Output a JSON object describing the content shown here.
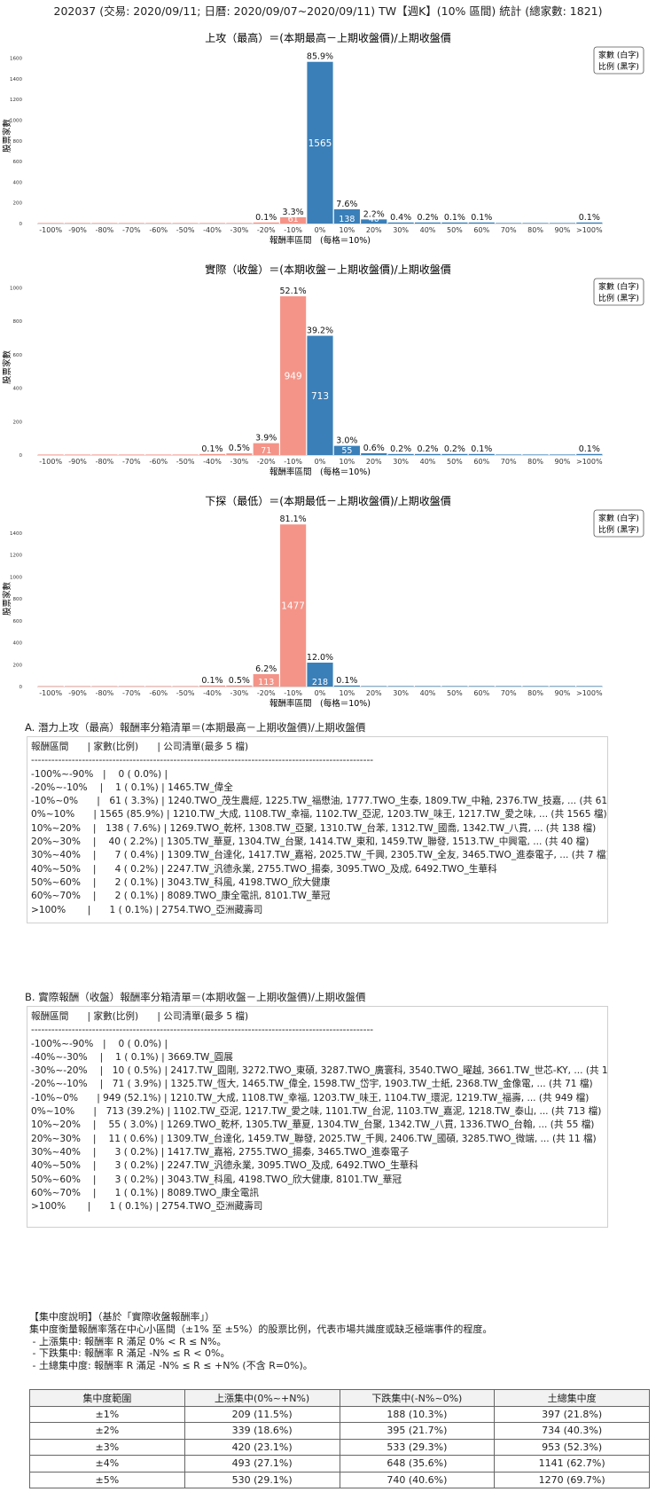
{
  "page_title": "202037 (交易: 2020/09/11; 日曆: 2020/09/07~2020/09/11) TW【週K】(10% 區間) 統計 (總家數: 1821)",
  "legend_box": [
    "家數 (白字)",
    "比例 (黑字)"
  ],
  "colors": {
    "positive": "#3a7fb8",
    "negative": "#f49488"
  },
  "chart_data": [
    {
      "type": "bar",
      "title": "上攻（最高）＝(本期最高－上期收盤價)/上期收盤價",
      "xlabel": "報酬率區間　(每格＝10%)",
      "ylabel": "股票家數",
      "ylim": [
        0,
        1700
      ],
      "yticks": [
        0,
        200,
        400,
        600,
        800,
        1000,
        1200,
        1400,
        1600
      ],
      "categories": [
        "-100%",
        "-90%",
        "-80%",
        "-70%",
        "-60%",
        "-50%",
        "-40%",
        "-30%",
        "-20%",
        "-10%",
        "0%",
        "10%",
        "20%",
        "30%",
        "40%",
        "50%",
        "60%",
        "70%",
        "80%",
        "90%",
        ">100%"
      ],
      "values": [
        0,
        0,
        0,
        0,
        0,
        0,
        0,
        0,
        1,
        61,
        1565,
        138,
        40,
        7,
        4,
        2,
        2,
        0,
        0,
        0,
        1
      ],
      "pct_labels": [
        "",
        "",
        "",
        "",
        "",
        "",
        "",
        "",
        "0.1%",
        "3.3%",
        "85.9%",
        "7.6%",
        "2.2%",
        "0.4%",
        "0.2%",
        "0.1%",
        "0.1%",
        "",
        "",
        "",
        "0.1%"
      ],
      "count_labels": [
        "",
        "",
        "",
        "",
        "",
        "",
        "",
        "",
        "",
        "61",
        "1565",
        "138",
        "40",
        "",
        "",
        "",
        "",
        "",
        "",
        "",
        ""
      ]
    },
    {
      "type": "bar",
      "title": "實際（收盤）＝(本期收盤－上期收盤價)/上期收盤價",
      "xlabel": "報酬率區間　(每格＝10%)",
      "ylabel": "股票家數",
      "ylim": [
        0,
        1050
      ],
      "yticks": [
        0,
        200,
        400,
        600,
        800,
        1000
      ],
      "categories": [
        "-100%",
        "-90%",
        "-80%",
        "-70%",
        "-60%",
        "-50%",
        "-40%",
        "-30%",
        "-20%",
        "-10%",
        "0%",
        "10%",
        "20%",
        "30%",
        "40%",
        "50%",
        "60%",
        "70%",
        "80%",
        "90%",
        ">100%"
      ],
      "values": [
        0,
        0,
        0,
        0,
        0,
        0,
        1,
        10,
        71,
        949,
        713,
        55,
        11,
        3,
        3,
        3,
        1,
        0,
        0,
        0,
        1
      ],
      "pct_labels": [
        "",
        "",
        "",
        "",
        "",
        "",
        "0.1%",
        "0.5%",
        "3.9%",
        "52.1%",
        "39.2%",
        "3.0%",
        "0.6%",
        "0.2%",
        "0.2%",
        "0.2%",
        "0.1%",
        "",
        "",
        "",
        "0.1%"
      ],
      "count_labels": [
        "",
        "",
        "",
        "",
        "",
        "",
        "",
        "",
        "71",
        "949",
        "713",
        "55",
        "",
        "",
        "",
        "",
        "",
        "",
        "",
        "",
        ""
      ]
    },
    {
      "type": "bar",
      "title": "下探（最低）＝(本期最低－上期收盤價)/上期收盤價",
      "xlabel": "報酬率區間　(每格＝10%)",
      "ylabel": "股票家數",
      "ylim": [
        0,
        1600
      ],
      "yticks": [
        0,
        200,
        400,
        600,
        800,
        1000,
        1200,
        1400
      ],
      "categories": [
        "-100%",
        "-90%",
        "-80%",
        "-70%",
        "-60%",
        "-50%",
        "-40%",
        "-30%",
        "-20%",
        "-10%",
        "0%",
        "10%",
        "20%",
        "30%",
        "40%",
        "50%",
        "60%",
        "70%",
        "80%",
        "90%",
        ">100%"
      ],
      "values": [
        0,
        0,
        0,
        0,
        0,
        0,
        1,
        10,
        113,
        1477,
        218,
        2,
        0,
        0,
        0,
        0,
        0,
        0,
        0,
        0,
        0
      ],
      "pct_labels": [
        "",
        "",
        "",
        "",
        "",
        "",
        "0.1%",
        "0.5%",
        "6.2%",
        "81.1%",
        "12.0%",
        "0.1%",
        "",
        "",
        "",
        "",
        "",
        "",
        "",
        "",
        ""
      ],
      "count_labels": [
        "",
        "",
        "",
        "",
        "",
        "",
        "",
        "",
        "113",
        "1477",
        "218",
        "",
        "",
        "",
        "",
        "",
        "",
        "",
        "",
        "",
        ""
      ]
    }
  ],
  "list_a": {
    "title": "A. 潛力上攻（最高）報酬率分箱清單＝(本期最高－上期收盤價)/上期收盤價",
    "lines": [
      "報酬區間　　| 家數(比例)　　| 公司清單(最多 5 檔)",
      "-----------------------------------------------------------------------------------------------------",
      "-100%~-90%　|　 0 ( 0.0%) |",
      "-20%~-10%　 |　 1 ( 0.1%) | 1465.TW_偉全",
      "-10%~0%　　|　61 ( 3.3%) | 1240.TWO_茂生農經, 1225.TW_福懋油, 1777.TWO_生泰, 1809.TW_中釉, 2376.TW_技嘉, ... (共 61 檔)",
      "0%~10%　　| 1565 (85.9%) | 1210.TW_大成, 1108.TW_幸福, 1102.TW_亞泥, 1203.TW_味王, 1217.TW_愛之味, ... (共 1565 檔)",
      "10%~20%　 |　138 ( 7.6%) | 1269.TWO_乾杯, 1308.TW_亞聚, 1310.TW_台苯, 1312.TW_國喬, 1342.TW_八貫, ... (共 138 檔)",
      "20%~30%　 |　 40 ( 2.2%) | 1305.TW_華夏, 1304.TW_台聚, 1414.TW_東和, 1459.TW_聯發, 1513.TW_中興電, ... (共 40 檔)",
      "30%~40%　 |　　7 ( 0.4%) | 1309.TW_台達化, 1417.TW_嘉裕, 2025.TW_千興, 2305.TW_全友, 3465.TWO_進泰電子, ... (共 7 檔)",
      "40%~50%　 |　　4 ( 0.2%) | 2247.TW_汎德永業, 2755.TWO_揚秦, 3095.TWO_及成, 6492.TWO_生華科",
      "50%~60%　 |　　2 ( 0.1%) | 3043.TW_科風, 4198.TWO_欣大健康",
      "60%~70%　 |　　2 ( 0.1%) | 8089.TWO_康全電訊, 8101.TW_華冠",
      ">100%　　 |　　1 ( 0.1%) | 2754.TWO_亞洲藏壽司"
    ]
  },
  "list_b": {
    "title": "B. 實際報酬（收盤）報酬率分箱清單＝(本期收盤－上期收盤價)/上期收盤價",
    "lines": [
      "報酬區間　　| 家數(比例)　　| 公司清單(最多 5 檔)",
      "-----------------------------------------------------------------------------------------------------",
      "-100%~-90%　|　 0 ( 0.0%) |",
      "-40%~-30%　 |　 1 ( 0.1%) | 3669.TW_圓展",
      "-30%~-20%　 |　10 ( 0.5%) | 2417.TW_圓剛, 3272.TWO_東碩, 3287.TWO_廣寰科, 3540.TWO_曜越, 3661.TW_世芯-KY, ... (共 10 檔)",
      "-20%~-10%　 |　71 ( 3.9%) | 1325.TW_恆大, 1465.TW_偉全, 1598.TW_岱宇, 1903.TW_士紙, 2368.TW_金像電, ... (共 71 檔)",
      "-10%~0%　　| 949 (52.1%) | 1210.TW_大成, 1108.TW_幸福, 1203.TW_味王, 1104.TW_環泥, 1219.TW_福壽, ... (共 949 檔)",
      "0%~10%　　|　713 (39.2%) | 1102.TW_亞泥, 1217.TW_愛之味, 1101.TW_台泥, 1103.TW_嘉泥, 1218.TW_泰山, ... (共 713 檔)",
      "10%~20%　 |　 55 ( 3.0%) | 1269.TWO_乾杯, 1305.TW_華夏, 1304.TW_台聚, 1342.TW_八貫, 1336.TWO_台翰, ... (共 55 檔)",
      "20%~30%　 |　 11 ( 0.6%) | 1309.TW_台達化, 1459.TW_聯發, 2025.TW_千興, 2406.TW_國碩, 3285.TWO_微端, ... (共 11 檔)",
      "30%~40%　 |　　3 ( 0.2%) | 1417.TW_嘉裕, 2755.TWO_揚秦, 3465.TWO_進泰電子",
      "40%~50%　 |　　3 ( 0.2%) | 2247.TW_汎德永業, 3095.TWO_及成, 6492.TWO_生華科",
      "50%~60%　 |　　3 ( 0.2%) | 3043.TW_科風, 4198.TWO_欣大健康, 8101.TW_華冠",
      "60%~70%　 |　　1 ( 0.1%) | 8089.TWO_康全電訊",
      ">100%　　 |　　1 ( 0.1%) | 2754.TWO_亞洲藏壽司"
    ]
  },
  "notes": [
    "【集中度說明】（基於「實際收盤報酬率」）",
    "集中度衡量報酬率落在中心小區間（±1% 至 ±5%）的股票比例，代表市場共識度或缺乏極端事件的程度。",
    " - 上漲集中: 報酬率 R 滿足 0% < R ≤ N%。",
    " - 下跌集中: 報酬率 R 滿足 -N% ≤ R < 0%。",
    " - 土總集中度: 報酬率 R 滿足 -N% ≤ R ≤ +N% (不含 R=0%)。"
  ],
  "table": {
    "headers": [
      "集中度範圍",
      "上漲集中(0%~+N%)",
      "下跌集中(-N%~0%)",
      "土總集中度"
    ],
    "rows": [
      [
        "±1%",
        "209 (11.5%)",
        "188 (10.3%)",
        "397 (21.8%)"
      ],
      [
        "±2%",
        "339 (18.6%)",
        "395 (21.7%)",
        "734 (40.3%)"
      ],
      [
        "±3%",
        "420 (23.1%)",
        "533 (29.3%)",
        "953 (52.3%)"
      ],
      [
        "±4%",
        "493 (27.1%)",
        "648 (35.6%)",
        "1141 (62.7%)"
      ],
      [
        "±5%",
        "530 (29.1%)",
        "740 (40.6%)",
        "1270 (69.7%)"
      ]
    ]
  }
}
